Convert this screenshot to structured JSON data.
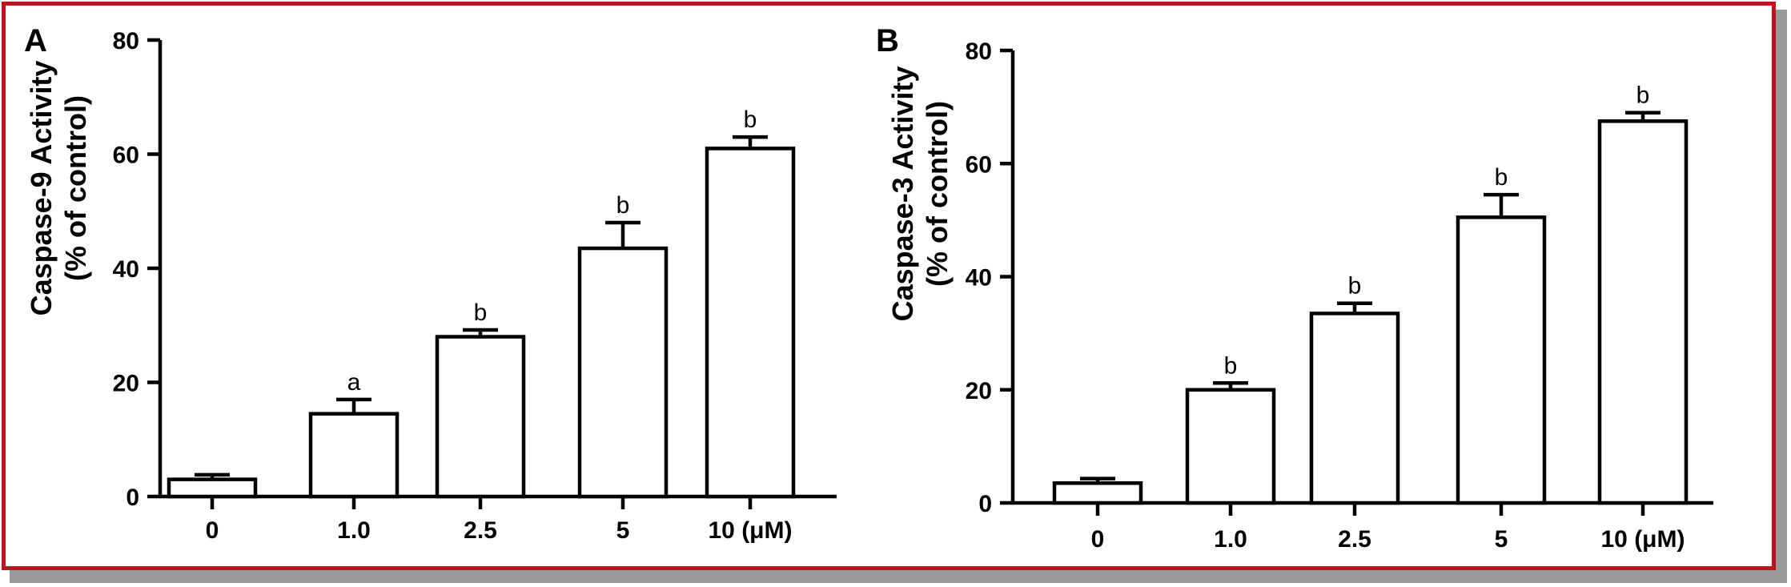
{
  "colors": {
    "frame": "#c0121c",
    "shadow": "#9a9a9a",
    "bars": "#ffffff",
    "strokes": "#000000"
  },
  "chart_data": [
    {
      "type": "bar",
      "panel": "A",
      "categories": [
        "0",
        "1.0",
        "2.5",
        "5",
        "10 (μM)"
      ],
      "values": [
        3,
        14.5,
        28,
        43.5,
        61
      ],
      "errors": [
        0.8,
        2.5,
        1.2,
        4.5,
        2
      ],
      "significance": [
        "",
        "a",
        "b",
        "b",
        "b"
      ],
      "ylabel": [
        "Caspase-9 Activity",
        "(% of control)"
      ],
      "ylim": [
        0,
        80
      ],
      "yticks": [
        0,
        20,
        40,
        60,
        80
      ],
      "grid": false
    },
    {
      "type": "bar",
      "panel": "B",
      "categories": [
        "0",
        "1.0",
        "2.5",
        "5",
        "10 (μM)"
      ],
      "values": [
        3.5,
        20,
        33.5,
        50.5,
        67.5
      ],
      "errors": [
        0.8,
        1.2,
        1.8,
        4,
        1.5
      ],
      "significance": [
        "",
        "b",
        "b",
        "b",
        "b"
      ],
      "ylabel": [
        "Caspase-3 Activity",
        "(% of control)"
      ],
      "ylim": [
        0,
        80
      ],
      "yticks": [
        0,
        20,
        40,
        60,
        80
      ],
      "grid": false
    }
  ]
}
